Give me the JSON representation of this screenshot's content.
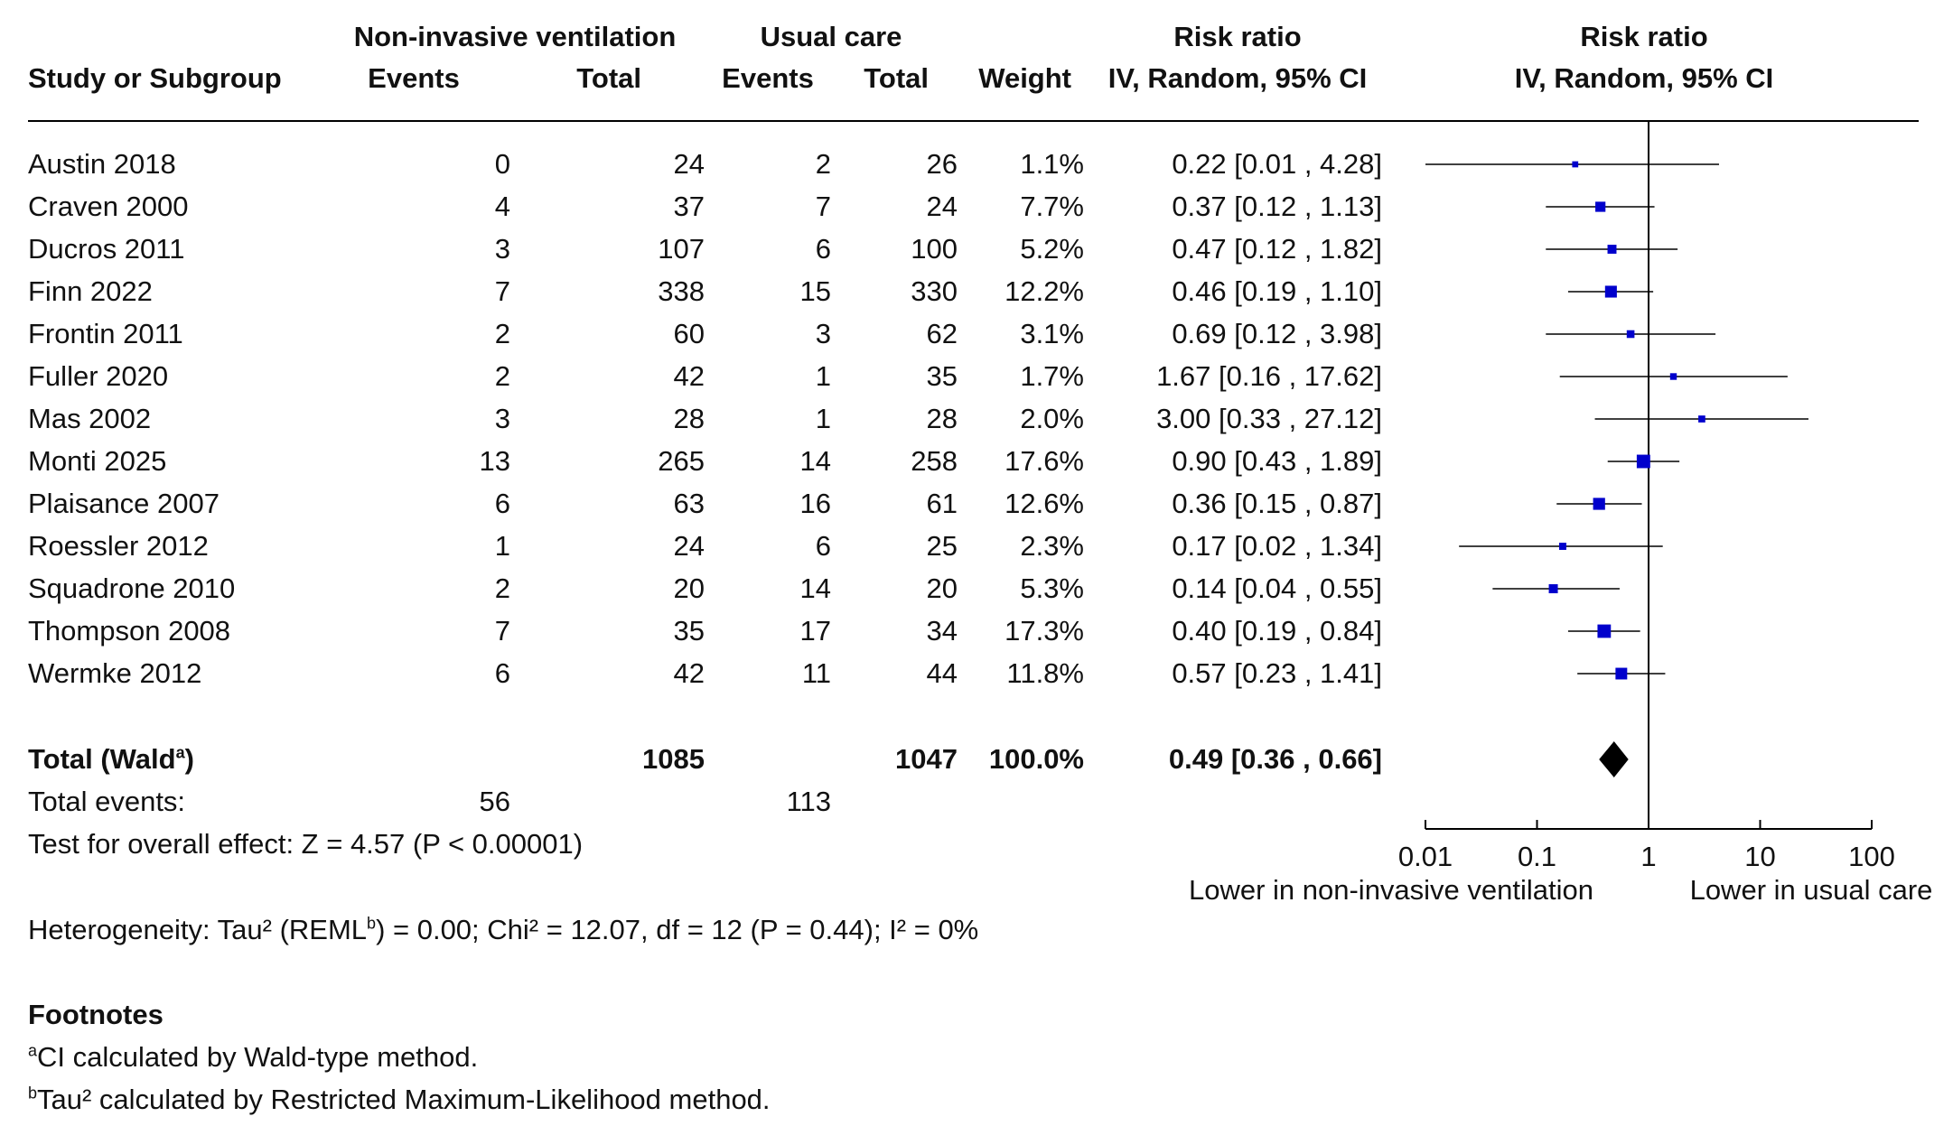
{
  "header": {
    "group1_title": "Non-invasive ventilation",
    "group2_title": "Usual care",
    "study_col": "Study or Subgroup",
    "events_label": "Events",
    "total_label": "Total",
    "weight_label": "Weight",
    "effect_title": "Risk ratio",
    "effect_method": "IV, Random, 95% CI",
    "plot_title": "Risk ratio",
    "plot_method": "IV, Random, 95% CI"
  },
  "studies": [
    {
      "name": "Austin 2018",
      "e1": "0",
      "n1": "24",
      "e2": "2",
      "n2": "26",
      "weight": "1.1%",
      "ci_text": "0.22 [0.01 , 4.28]"
    },
    {
      "name": "Craven 2000",
      "e1": "4",
      "n1": "37",
      "e2": "7",
      "n2": "24",
      "weight": "7.7%",
      "ci_text": "0.37 [0.12 , 1.13]"
    },
    {
      "name": "Ducros 2011",
      "e1": "3",
      "n1": "107",
      "e2": "6",
      "n2": "100",
      "weight": "5.2%",
      "ci_text": "0.47 [0.12 , 1.82]"
    },
    {
      "name": "Finn 2022",
      "e1": "7",
      "n1": "338",
      "e2": "15",
      "n2": "330",
      "weight": "12.2%",
      "ci_text": "0.46 [0.19 , 1.10]"
    },
    {
      "name": "Frontin 2011",
      "e1": "2",
      "n1": "60",
      "e2": "3",
      "n2": "62",
      "weight": "3.1%",
      "ci_text": "0.69 [0.12 , 3.98]"
    },
    {
      "name": "Fuller 2020",
      "e1": "2",
      "n1": "42",
      "e2": "1",
      "n2": "35",
      "weight": "1.7%",
      "ci_text": "1.67 [0.16 , 17.62]"
    },
    {
      "name": "Mas 2002",
      "e1": "3",
      "n1": "28",
      "e2": "1",
      "n2": "28",
      "weight": "2.0%",
      "ci_text": "3.00 [0.33 , 27.12]"
    },
    {
      "name": "Monti 2025",
      "e1": "13",
      "n1": "265",
      "e2": "14",
      "n2": "258",
      "weight": "17.6%",
      "ci_text": "0.90 [0.43 , 1.89]"
    },
    {
      "name": "Plaisance 2007",
      "e1": "6",
      "n1": "63",
      "e2": "16",
      "n2": "61",
      "weight": "12.6%",
      "ci_text": "0.36 [0.15 , 0.87]"
    },
    {
      "name": "Roessler 2012",
      "e1": "1",
      "n1": "24",
      "e2": "6",
      "n2": "25",
      "weight": "2.3%",
      "ci_text": "0.17 [0.02 , 1.34]"
    },
    {
      "name": "Squadrone 2010",
      "e1": "2",
      "n1": "20",
      "e2": "14",
      "n2": "20",
      "weight": "5.3%",
      "ci_text": "0.14 [0.04 , 0.55]"
    },
    {
      "name": "Thompson 2008",
      "e1": "7",
      "n1": "35",
      "e2": "17",
      "n2": "34",
      "weight": "17.3%",
      "ci_text": "0.40 [0.19 , 0.84]"
    },
    {
      "name": "Wermke 2012",
      "e1": "6",
      "n1": "42",
      "e2": "11",
      "n2": "44",
      "weight": "11.8%",
      "ci_text": "0.57 [0.23 , 1.41]"
    }
  ],
  "total": {
    "label": "Total (Wald",
    "label_sup": "a",
    "label_close": ")",
    "n1": "1085",
    "n2": "1047",
    "weight": "100.0%",
    "ci_text": "0.49 [0.36 , 0.66]"
  },
  "total_events": {
    "label": "Total events:",
    "e1": "56",
    "e2": "113"
  },
  "overall_effect": "Test for overall effect: Z = 4.57 (P < 0.00001)",
  "heterogeneity": {
    "pre": "Heterogeneity: Tau² (REML",
    "sup": "b",
    "post": ") = 0.00; Chi² = 12.07, df = 12 (P = 0.44); I² = 0%"
  },
  "footnotes": {
    "title": "Footnotes",
    "a_mark": "a",
    "a_text": "CI calculated by Wald-type method.",
    "b_mark": "b",
    "b_text": "Tau² calculated by Restricted Maximum-Likelihood method."
  },
  "chart_data": {
    "type": "forest",
    "scale": "log",
    "xlim": [
      0.01,
      100
    ],
    "ticks": [
      "0.01",
      "0.1",
      "1",
      "10",
      "100"
    ],
    "tick_values": [
      0.01,
      0.1,
      1,
      10,
      100
    ],
    "left_label": "Lower in non-invasive ventilation",
    "right_label": "Lower in usual care",
    "marker_color": "#0000cc",
    "points": [
      {
        "study": "Austin 2018",
        "rr": 0.22,
        "lo": 0.01,
        "hi": 4.28,
        "weight": 1.1
      },
      {
        "study": "Craven 2000",
        "rr": 0.37,
        "lo": 0.12,
        "hi": 1.13,
        "weight": 7.7
      },
      {
        "study": "Ducros 2011",
        "rr": 0.47,
        "lo": 0.12,
        "hi": 1.82,
        "weight": 5.2
      },
      {
        "study": "Finn 2022",
        "rr": 0.46,
        "lo": 0.19,
        "hi": 1.1,
        "weight": 12.2
      },
      {
        "study": "Frontin 2011",
        "rr": 0.69,
        "lo": 0.12,
        "hi": 3.98,
        "weight": 3.1
      },
      {
        "study": "Fuller 2020",
        "rr": 1.67,
        "lo": 0.16,
        "hi": 17.62,
        "weight": 1.7
      },
      {
        "study": "Mas 2002",
        "rr": 3.0,
        "lo": 0.33,
        "hi": 27.12,
        "weight": 2.0
      },
      {
        "study": "Monti 2025",
        "rr": 0.9,
        "lo": 0.43,
        "hi": 1.89,
        "weight": 17.6
      },
      {
        "study": "Plaisance 2007",
        "rr": 0.36,
        "lo": 0.15,
        "hi": 0.87,
        "weight": 12.6
      },
      {
        "study": "Roessler 2012",
        "rr": 0.17,
        "lo": 0.02,
        "hi": 1.34,
        "weight": 2.3
      },
      {
        "study": "Squadrone 2010",
        "rr": 0.14,
        "lo": 0.04,
        "hi": 0.55,
        "weight": 5.3
      },
      {
        "study": "Thompson 2008",
        "rr": 0.4,
        "lo": 0.19,
        "hi": 0.84,
        "weight": 17.3
      },
      {
        "study": "Wermke 2012",
        "rr": 0.57,
        "lo": 0.23,
        "hi": 1.41,
        "weight": 11.8
      }
    ],
    "pooled": {
      "rr": 0.49,
      "lo": 0.36,
      "hi": 0.66
    }
  }
}
